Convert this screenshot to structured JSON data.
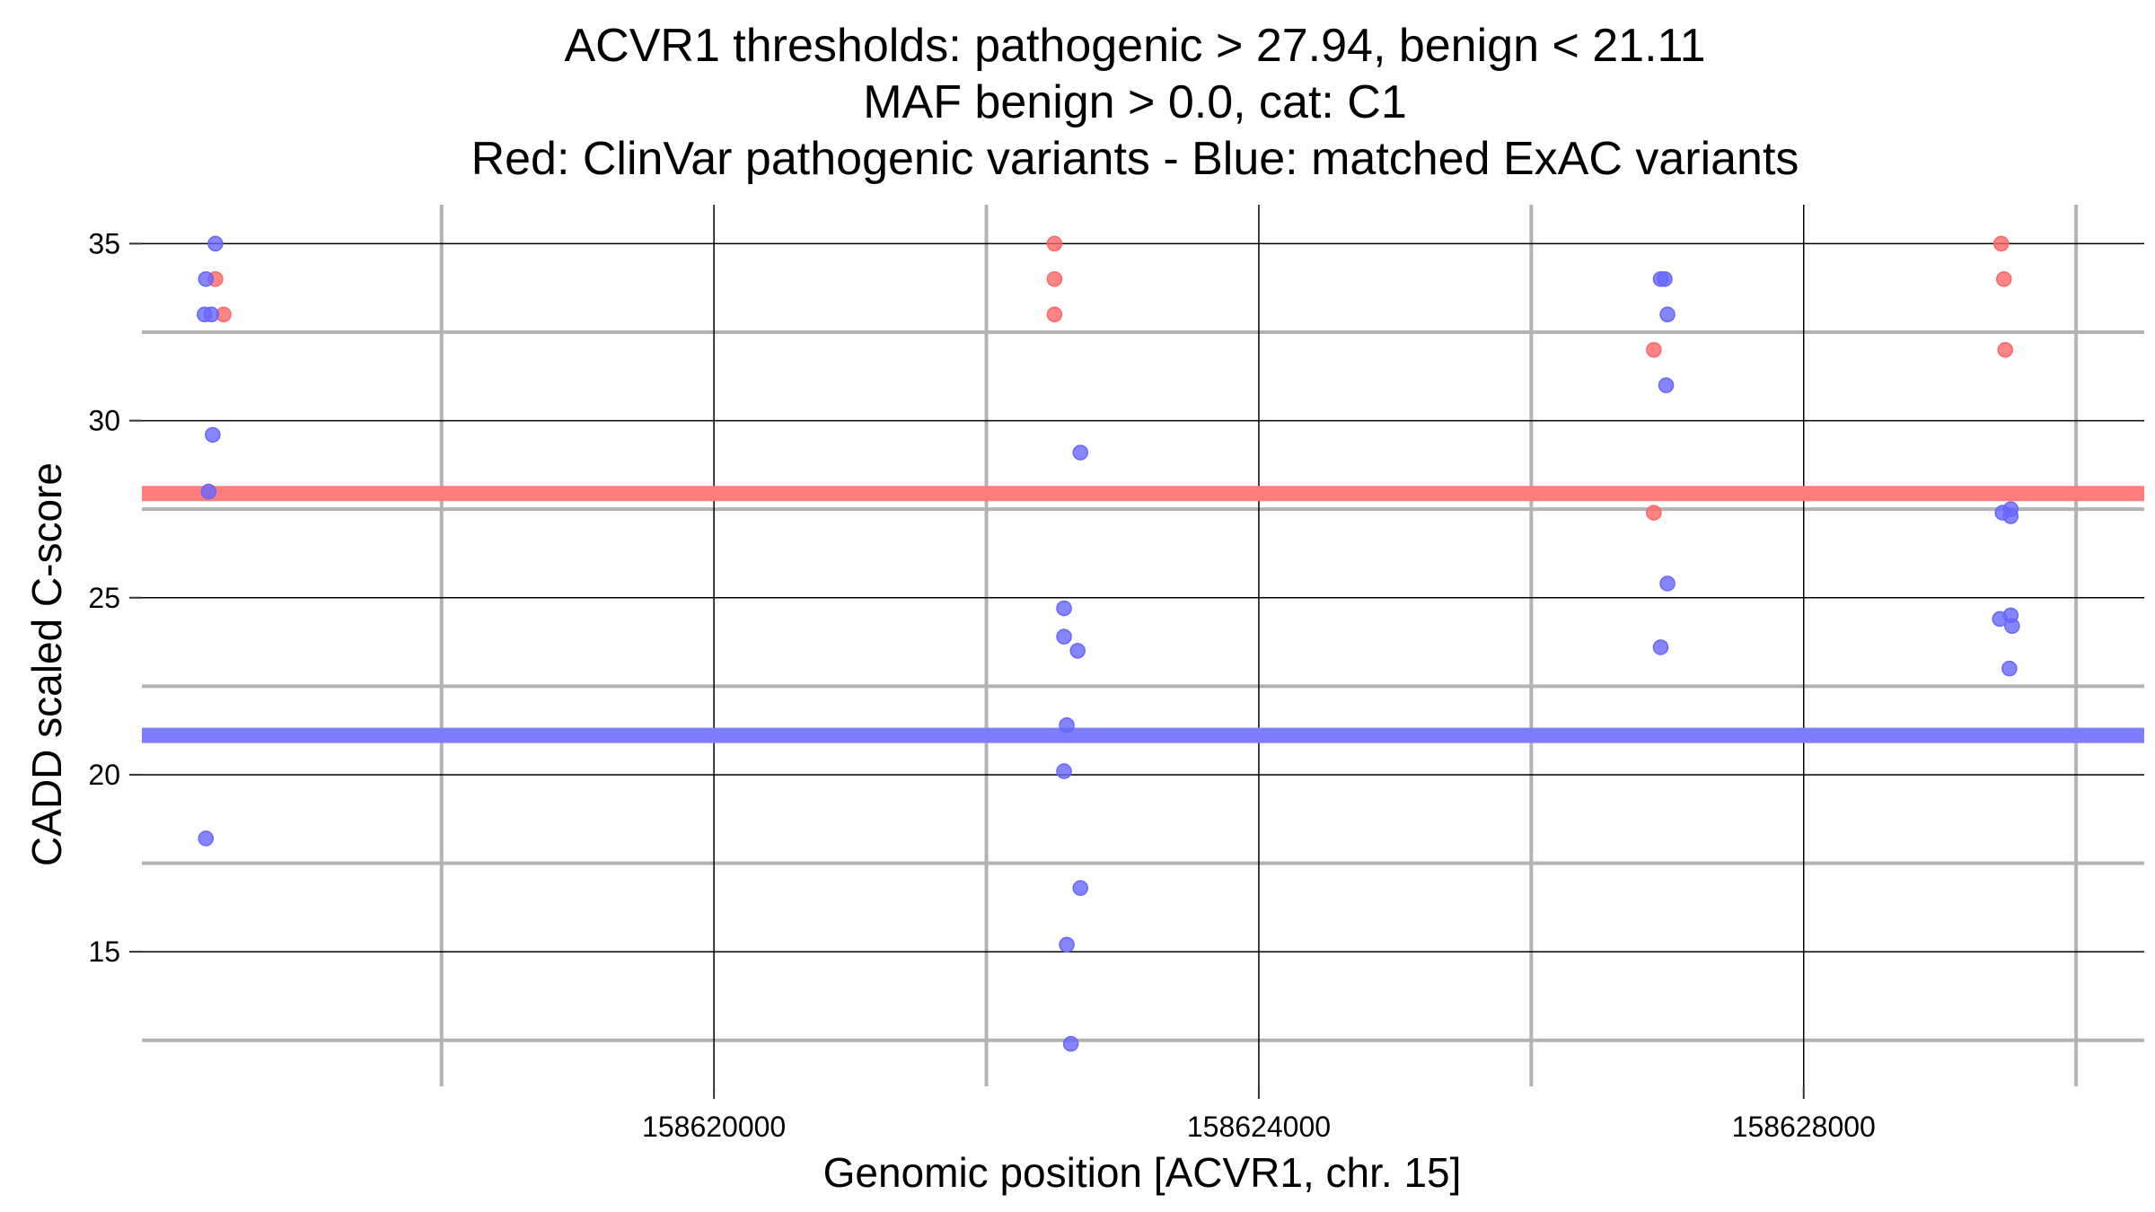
{
  "chart_data": {
    "type": "scatter",
    "title_lines": [
      "ACVR1 thresholds: pathogenic > 27.94, benign < 21.11",
      "MAF benign > 0.0, cat: C1",
      "Red: ClinVar pathogenic variants - Blue: matched ExAC variants"
    ],
    "xlabel": "Genomic position [ACVR1, chr. 15]",
    "ylabel": "CADD scaled C-score",
    "xlim": [
      158615800,
      158630500
    ],
    "ylim": [
      11.2,
      36.1
    ],
    "x_ticks": [
      158620000,
      158624000,
      158628000
    ],
    "x_tick_labels": [
      "158620000",
      "158624000",
      "158628000"
    ],
    "x_minor_gridlines": [
      158618000,
      158622000,
      158626000,
      158630000
    ],
    "y_ticks": [
      15,
      20,
      25,
      30,
      35
    ],
    "y_tick_labels": [
      "15",
      "20",
      "25",
      "30",
      "35"
    ],
    "y_minor_gridlines": [
      12.5,
      17.5,
      22.5,
      27.5,
      32.5
    ],
    "grid": true,
    "thresholds": [
      {
        "name": "pathogenic",
        "value": 27.94,
        "color": "#ff7c7c"
      },
      {
        "name": "benign",
        "value": 21.11,
        "color": "#7d7dfb"
      }
    ],
    "series": [
      {
        "name": "ClinVar pathogenic variants",
        "color": "#ff6666",
        "points": [
          {
            "x": 158616340,
            "y": 34
          },
          {
            "x": 158616400,
            "y": 33
          },
          {
            "x": 158622500,
            "y": 35
          },
          {
            "x": 158622500,
            "y": 34
          },
          {
            "x": 158622500,
            "y": 33
          },
          {
            "x": 158626900,
            "y": 32
          },
          {
            "x": 158626900,
            "y": 27.4
          },
          {
            "x": 158629450,
            "y": 35
          },
          {
            "x": 158629470,
            "y": 34
          },
          {
            "x": 158629480,
            "y": 32
          }
        ]
      },
      {
        "name": "matched ExAC variants",
        "color": "#6666ff",
        "points": [
          {
            "x": 158616340,
            "y": 35
          },
          {
            "x": 158616270,
            "y": 34
          },
          {
            "x": 158616260,
            "y": 33
          },
          {
            "x": 158616310,
            "y": 33
          },
          {
            "x": 158616320,
            "y": 29.6
          },
          {
            "x": 158616290,
            "y": 28
          },
          {
            "x": 158616270,
            "y": 18.2
          },
          {
            "x": 158622690,
            "y": 29.1
          },
          {
            "x": 158622570,
            "y": 24.7
          },
          {
            "x": 158622570,
            "y": 23.9
          },
          {
            "x": 158622670,
            "y": 23.5
          },
          {
            "x": 158622590,
            "y": 21.4
          },
          {
            "x": 158622570,
            "y": 20.1
          },
          {
            "x": 158622690,
            "y": 16.8
          },
          {
            "x": 158622590,
            "y": 15.2
          },
          {
            "x": 158622620,
            "y": 12.4
          },
          {
            "x": 158626950,
            "y": 34
          },
          {
            "x": 158626980,
            "y": 34
          },
          {
            "x": 158627000,
            "y": 33
          },
          {
            "x": 158626990,
            "y": 31
          },
          {
            "x": 158627000,
            "y": 25.4
          },
          {
            "x": 158626950,
            "y": 23.6
          },
          {
            "x": 158629460,
            "y": 27.4
          },
          {
            "x": 158629520,
            "y": 27.5
          },
          {
            "x": 158629520,
            "y": 27.3
          },
          {
            "x": 158629440,
            "y": 24.4
          },
          {
            "x": 158629520,
            "y": 24.5
          },
          {
            "x": 158629530,
            "y": 24.2
          },
          {
            "x": 158629510,
            "y": 23
          }
        ]
      }
    ]
  }
}
